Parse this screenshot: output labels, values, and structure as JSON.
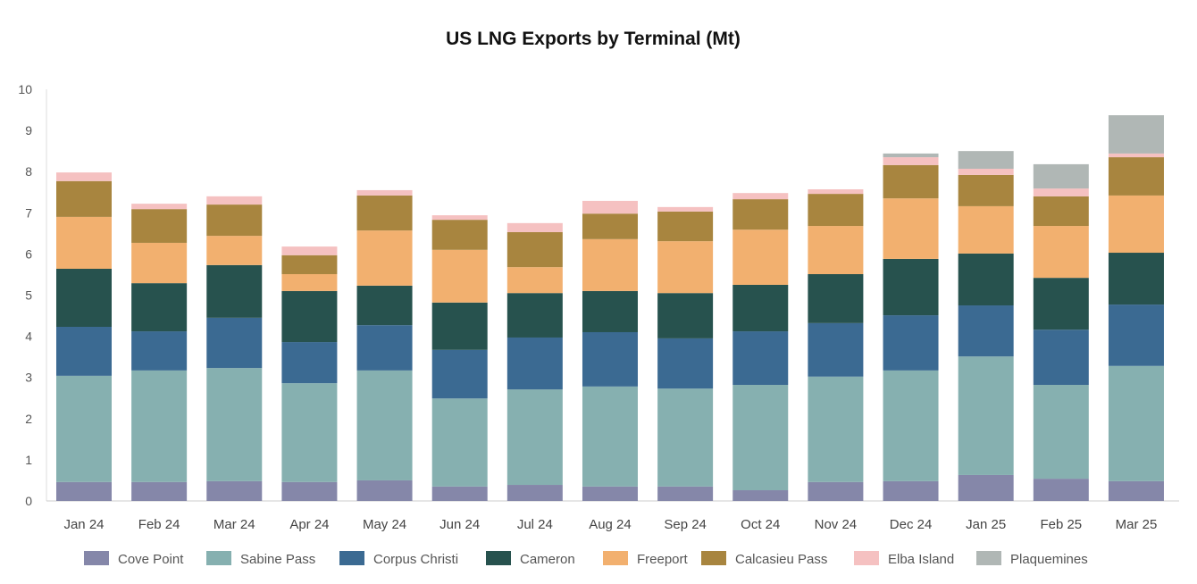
{
  "chart_data": {
    "type": "bar",
    "stacked": true,
    "title": "US LNG Exports by Terminal (Mt)",
    "xlabel": "",
    "ylabel": "",
    "ylim": [
      0,
      10
    ],
    "yticks": [
      "0",
      "1",
      "2",
      "3",
      "4",
      "5",
      "6",
      "7",
      "8",
      "9",
      "10"
    ],
    "grid": false,
    "legend_position": "bottom",
    "categories": [
      "Jan 24",
      "Feb 24",
      "Mar 24",
      "Apr 24",
      "May 24",
      "Jun 24",
      "Jul 24",
      "Aug 24",
      "Sep 24",
      "Oct 24",
      "Nov 24",
      "Dec 24",
      "Jan 25",
      "Feb 25",
      "Mar 25"
    ],
    "series": [
      {
        "name": "Cove Point",
        "color": "#8587a9",
        "values": [
          0.46,
          0.46,
          0.48,
          0.46,
          0.5,
          0.35,
          0.39,
          0.35,
          0.35,
          0.26,
          0.46,
          0.48,
          0.63,
          0.54,
          0.48
        ]
      },
      {
        "name": "Sabine Pass",
        "color": "#86b0b0",
        "values": [
          2.58,
          2.71,
          2.75,
          2.4,
          2.67,
          2.14,
          2.32,
          2.43,
          2.38,
          2.56,
          2.56,
          2.69,
          2.88,
          2.28,
          2.8
        ]
      },
      {
        "name": "Corpus Christi",
        "color": "#3b6a92",
        "values": [
          1.19,
          0.95,
          1.22,
          1.0,
          1.1,
          1.18,
          1.26,
          1.32,
          1.22,
          1.3,
          1.3,
          1.34,
          1.24,
          1.34,
          1.49
        ]
      },
      {
        "name": "Cameron",
        "color": "#27524e",
        "values": [
          1.41,
          1.17,
          1.28,
          1.24,
          0.96,
          1.15,
          1.08,
          1.0,
          1.1,
          1.13,
          1.19,
          1.37,
          1.26,
          1.26,
          1.26
        ]
      },
      {
        "name": "Freeport",
        "color": "#f2b06f",
        "values": [
          1.26,
          0.98,
          0.71,
          0.41,
          1.34,
          1.28,
          0.63,
          1.26,
          1.26,
          1.34,
          1.17,
          1.47,
          1.15,
          1.26,
          1.39
        ]
      },
      {
        "name": "Calcasieu Pass",
        "color": "#a8853f",
        "values": [
          0.87,
          0.82,
          0.76,
          0.46,
          0.85,
          0.73,
          0.85,
          0.62,
          0.72,
          0.74,
          0.78,
          0.81,
          0.76,
          0.72,
          0.93
        ]
      },
      {
        "name": "Elba Island",
        "color": "#f5c1c1",
        "values": [
          0.21,
          0.13,
          0.2,
          0.21,
          0.13,
          0.11,
          0.22,
          0.31,
          0.11,
          0.15,
          0.11,
          0.19,
          0.15,
          0.19,
          0.09
        ]
      },
      {
        "name": "Plaquemines",
        "color": "#b0b7b5",
        "values": [
          0,
          0,
          0,
          0,
          0,
          0,
          0,
          0,
          0,
          0,
          0,
          0.09,
          0.43,
          0.59,
          0.93
        ]
      }
    ]
  }
}
